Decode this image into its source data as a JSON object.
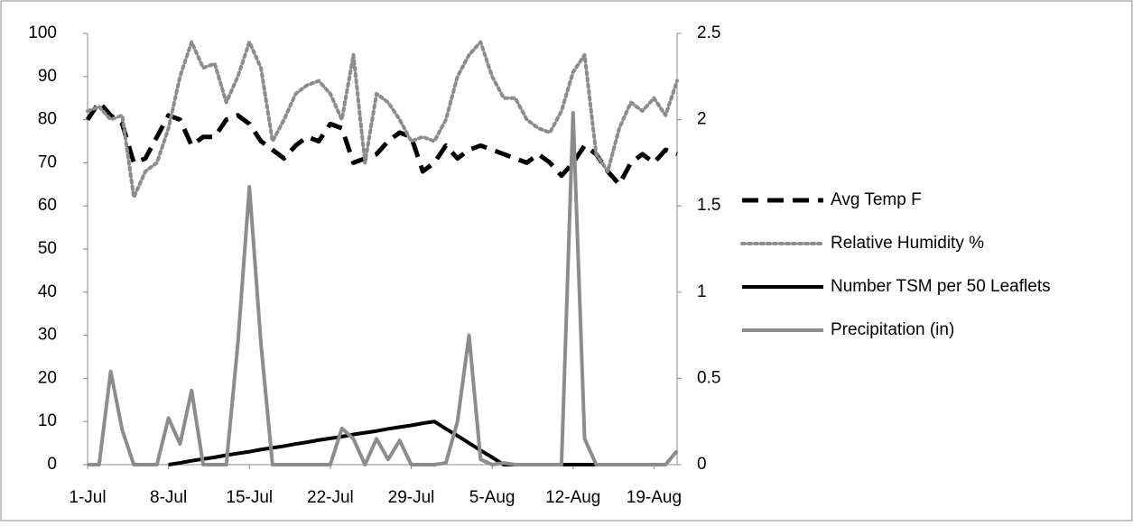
{
  "chart_data": {
    "type": "line",
    "categories": [
      "1-Jul",
      null,
      null,
      null,
      null,
      null,
      null,
      "8-Jul",
      null,
      null,
      null,
      null,
      null,
      null,
      "15-Jul",
      null,
      null,
      null,
      null,
      null,
      null,
      "22-Jul",
      null,
      null,
      null,
      null,
      null,
      null,
      "29-Jul",
      null,
      null,
      null,
      null,
      null,
      null,
      "5-Aug",
      null,
      null,
      null,
      null,
      null,
      null,
      "12-Aug",
      null,
      null,
      null,
      null,
      null,
      null,
      "19-Aug",
      null,
      null
    ],
    "series": [
      {
        "name": "Avg Temp F",
        "color": "#000000",
        "dash": "dashed",
        "axis": "y",
        "values": [
          80,
          84,
          81,
          79,
          70,
          71,
          76,
          81,
          80,
          74,
          76,
          76,
          80,
          81,
          79,
          75,
          73,
          71,
          74,
          76,
          75,
          79,
          78,
          70,
          71,
          72,
          75,
          77,
          76,
          68,
          70,
          74,
          71,
          73,
          74,
          73,
          72,
          71,
          70,
          72,
          70,
          67,
          70,
          74,
          72,
          68,
          65,
          70,
          72,
          70,
          73,
          72
        ]
      },
      {
        "name": "Relative Humidity %",
        "color": "#8c8c8c",
        "dash": "dotted",
        "axis": "y",
        "values": [
          82,
          83,
          80,
          81,
          62,
          68,
          70,
          78,
          90,
          98,
          92,
          93,
          84,
          90,
          98,
          92,
          75,
          80,
          86,
          88,
          89,
          86,
          80,
          95,
          70,
          86,
          84,
          80,
          75,
          76,
          75,
          80,
          90,
          95,
          98,
          90,
          85,
          85,
          80,
          78,
          77,
          82,
          91,
          95,
          72,
          68,
          78,
          84,
          82,
          85,
          81,
          89
        ]
      },
      {
        "name": "Number TSM per 50 Leaflets",
        "color": "#000000",
        "dash": "solid",
        "axis": "y",
        "values": [
          null,
          null,
          null,
          null,
          null,
          null,
          null,
          0,
          0.4,
          0.9,
          1.3,
          1.7,
          2.2,
          2.6,
          3.0,
          3.5,
          3.9,
          4.3,
          4.8,
          5.2,
          5.7,
          6.1,
          6.5,
          7.0,
          7.4,
          7.8,
          8.3,
          8.7,
          9.1,
          9.6,
          10,
          8.3,
          6.7,
          5,
          3.3,
          1.7,
          0,
          0,
          0,
          0,
          0,
          0,
          0,
          0,
          0,
          null,
          null,
          null,
          null,
          null,
          null,
          null
        ]
      },
      {
        "name": "Precipitation (in)",
        "color": "#8c8c8c",
        "dash": "solid",
        "axis": "y2",
        "values": [
          0,
          0,
          0.54,
          0.2,
          0,
          0,
          0,
          0.27,
          0.12,
          0.43,
          0,
          0,
          0,
          0.7,
          1.61,
          0.7,
          0,
          0,
          0,
          0,
          0,
          0,
          0.21,
          0.15,
          0,
          0.15,
          0.03,
          0.14,
          0,
          0,
          0,
          0.01,
          0.25,
          0.75,
          0.03,
          0,
          0.01,
          0,
          0,
          0,
          0,
          0,
          2.04,
          0.15,
          0,
          0,
          0,
          0,
          0,
          0,
          0,
          0.08
        ]
      }
    ],
    "ylim": [
      0,
      100
    ],
    "yticks": [
      0,
      10,
      20,
      30,
      40,
      50,
      60,
      70,
      80,
      90,
      100
    ],
    "y2lim": [
      0,
      2.5
    ],
    "y2ticks": [
      0,
      0.5,
      1,
      1.5,
      2,
      2.5
    ],
    "grid": false,
    "legend": "right"
  }
}
